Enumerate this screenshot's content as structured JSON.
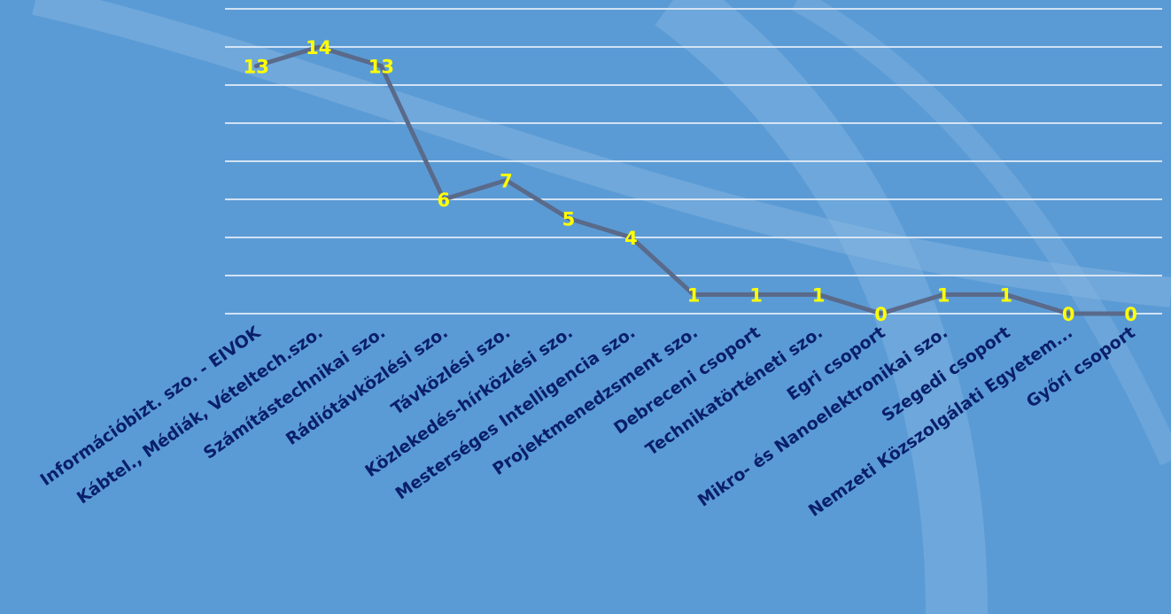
{
  "colors": {
    "background": "#5b9bd5",
    "swoosh": "#8ab8e3",
    "gridline": "#e6eef8",
    "series_line": "#5a6a8a",
    "data_label": "#ffff00",
    "category_label": "#0a1f6b"
  },
  "chart_data": {
    "type": "line",
    "title": "",
    "xlabel": "",
    "ylabel": "",
    "ylim": [
      0,
      16
    ],
    "grid": true,
    "legend": "none",
    "categories": [
      "Információbizt. szo. - EIVOK",
      "Kábtel., Médiák, Vételtech.szo.",
      "Számítástechnikai szo.",
      "Rádiótávközlési szo.",
      "Távközlési szo.",
      "Közlekedés-hírközlési szo.",
      "Mesterséges Intelligencia szo.",
      "Projektmenedzsment szo.",
      "Debreceni csoport",
      "Technikatörténeti szo.",
      "Egri csoport",
      "Mikro- és Nanoelektronikai szo.",
      "Szegedi csoport",
      "Nemzeti Közszolgálati Egyetem...",
      "Győri csoport"
    ],
    "series": [
      {
        "values": [
          13,
          14,
          13,
          6,
          7,
          5,
          4,
          1,
          1,
          1,
          0,
          1,
          1,
          0,
          0
        ]
      }
    ],
    "data_labels": [
      "13",
      "14",
      "13",
      "6",
      "7",
      "5",
      "4",
      "1",
      "1",
      "1",
      "0",
      "1",
      "1",
      "0",
      "0"
    ]
  }
}
